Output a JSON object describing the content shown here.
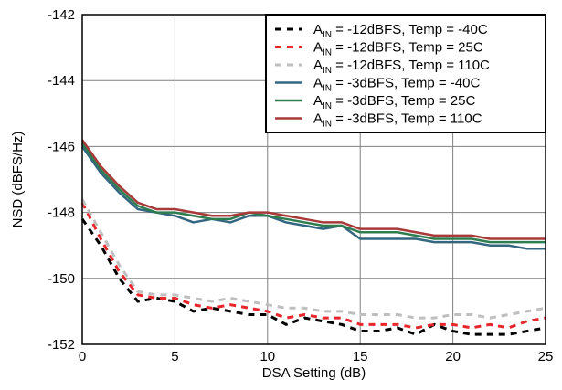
{
  "chart_data": {
    "type": "line",
    "xlabel": "DSA Setting (dB)",
    "ylabel": "NSD (dBFS/Hz)",
    "xlim": [
      0,
      25
    ],
    "ylim": [
      -152,
      -142
    ],
    "xticks": [
      0,
      5,
      10,
      15,
      20,
      25
    ],
    "yticks": [
      -142,
      -144,
      -146,
      -148,
      -150,
      -152
    ],
    "grid": true,
    "legend_position": "top-right",
    "x": [
      0,
      1,
      2,
      3,
      4,
      5,
      6,
      7,
      8,
      9,
      10,
      11,
      12,
      13,
      14,
      15,
      16,
      17,
      18,
      19,
      20,
      21,
      22,
      23,
      24,
      25
    ],
    "series": [
      {
        "name": "A_IN = -12dBFS, Temp = -40C",
        "label_parts": [
          "A",
          "IN",
          " = -12dBFS, Temp = -40C"
        ],
        "color": "#000000",
        "dashed": true,
        "values": [
          -148.2,
          -149.0,
          -150.0,
          -150.7,
          -150.6,
          -150.7,
          -151.0,
          -150.9,
          -151.0,
          -151.1,
          -151.1,
          -151.4,
          -151.2,
          -151.3,
          -151.4,
          -151.6,
          -151.6,
          -151.5,
          -151.7,
          -151.4,
          -151.6,
          -151.7,
          -151.7,
          -151.7,
          -151.6,
          -151.5
        ]
      },
      {
        "name": "A_IN = -12dBFS, Temp = 25C",
        "label_parts": [
          "A",
          "IN",
          " = -12dBFS, Temp = 25C"
        ],
        "color": "#e8262c",
        "dashed": true,
        "values": [
          -147.7,
          -148.8,
          -149.8,
          -150.5,
          -150.6,
          -150.6,
          -150.8,
          -150.9,
          -150.8,
          -150.9,
          -151.0,
          -151.2,
          -151.1,
          -151.2,
          -151.2,
          -151.4,
          -151.4,
          -151.4,
          -151.5,
          -151.4,
          -151.4,
          -151.5,
          -151.4,
          -151.5,
          -151.3,
          -151.2
        ]
      },
      {
        "name": "A_IN = -12dBFS, Temp = 110C",
        "label_parts": [
          "A",
          "IN",
          " = -12dBFS, Temp = 110C"
        ],
        "color": "#bfbfbf",
        "dashed": true,
        "values": [
          -147.6,
          -148.6,
          -149.6,
          -150.4,
          -150.5,
          -150.5,
          -150.6,
          -150.7,
          -150.6,
          -150.7,
          -150.8,
          -150.9,
          -150.9,
          -151.0,
          -151.0,
          -151.1,
          -151.1,
          -151.1,
          -151.2,
          -151.2,
          -151.1,
          -151.1,
          -151.2,
          -151.1,
          -151.0,
          -150.9
        ]
      },
      {
        "name": "A_IN = -3dBFS, Temp = -40C",
        "label_parts": [
          "A",
          "IN",
          " = -3dBFS, Temp = -40C"
        ],
        "color": "#336680",
        "dashed": false,
        "values": [
          -146.0,
          -146.8,
          -147.4,
          -147.9,
          -148.0,
          -148.1,
          -148.3,
          -148.2,
          -148.3,
          -148.1,
          -148.1,
          -148.3,
          -148.4,
          -148.5,
          -148.4,
          -148.8,
          -148.8,
          -148.8,
          -148.8,
          -148.9,
          -148.9,
          -148.9,
          -149.0,
          -149.0,
          -149.1,
          -149.1
        ]
      },
      {
        "name": "A_IN = -3dBFS, Temp = 25C",
        "label_parts": [
          "A",
          "IN",
          " = -3dBFS, Temp = 25C"
        ],
        "color": "#2e7d4f",
        "dashed": false,
        "values": [
          -145.9,
          -146.7,
          -147.3,
          -147.8,
          -148.0,
          -148.0,
          -148.1,
          -148.2,
          -148.2,
          -148.0,
          -148.1,
          -148.2,
          -148.3,
          -148.4,
          -148.4,
          -148.6,
          -148.6,
          -148.6,
          -148.7,
          -148.8,
          -148.8,
          -148.8,
          -148.9,
          -148.9,
          -148.9,
          -148.9
        ]
      },
      {
        "name": "A_IN = -3dBFS, Temp = 110C",
        "label_parts": [
          "A",
          "IN",
          " = -3dBFS, Temp = 110C"
        ],
        "color": "#a83a3a",
        "dashed": false,
        "values": [
          -145.8,
          -146.6,
          -147.2,
          -147.7,
          -147.9,
          -147.9,
          -148.0,
          -148.1,
          -148.1,
          -148.0,
          -148.0,
          -148.1,
          -148.2,
          -148.3,
          -148.3,
          -148.5,
          -148.5,
          -148.5,
          -148.6,
          -148.7,
          -148.7,
          -148.7,
          -148.8,
          -148.8,
          -148.8,
          -148.8
        ]
      }
    ]
  }
}
